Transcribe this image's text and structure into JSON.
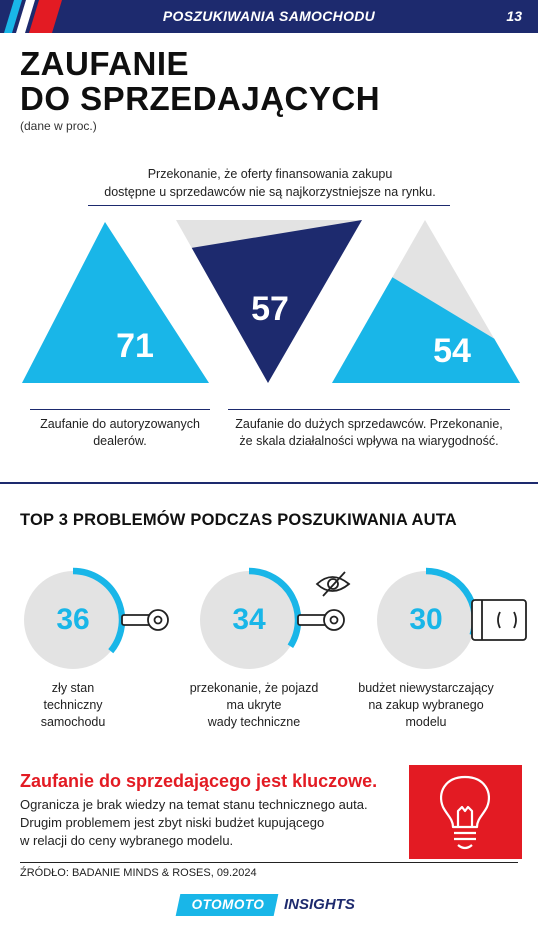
{
  "header": {
    "title": "POSZUKIWANIA SAMOCHODU",
    "page_number": "13"
  },
  "title_line1": "ZAUFANIE",
  "title_line2": "DO SPRZEDAJĄCYCH",
  "subnote": "(dane w proc.)",
  "colors": {
    "navy": "#1d2a6e",
    "cyan": "#19b6e8",
    "gray": "#e3e3e3",
    "red": "#e31b23"
  },
  "chart_data": [
    {
      "type": "triangle-proportion",
      "items": [
        {
          "value": 71,
          "label": "Zaufanie do autoryzowanych dealerów."
        },
        {
          "value": 57,
          "label": "Przekonanie, że oferty finansowania zakupu dostępne u sprzedawców nie są najkorzystniejsze na rynku."
        },
        {
          "value": 54,
          "label": "Zaufanie do dużych sprzedawców. Przekonanie, że skala działalności wpływa na wiarygodność."
        }
      ]
    },
    {
      "type": "donut-progress",
      "title": "TOP 3 PROBLEMÓW PODCZAS POSZUKIWANIA AUTA",
      "items": [
        {
          "value": 36,
          "label_lines": [
            "zły stan",
            "techniczny",
            "samochodu"
          ]
        },
        {
          "value": 34,
          "label_lines": [
            "przekonanie, że pojazd",
            "ma ukryte",
            "wady techniczne"
          ]
        },
        {
          "value": 30,
          "label_lines": [
            "budżet niewystarczający",
            "na zakup wybranego",
            "modelu"
          ]
        }
      ]
    }
  ],
  "top_caption_lines": [
    "Przekonanie, że oferty finansowania zakupu",
    "dostępne u sprzedawców nie są najkorzystniejsze na rynku."
  ],
  "left_caption_lines": [
    "Zaufanie do autoryzowanych",
    "dealerów."
  ],
  "right_caption_lines": [
    "Zaufanie do dużych sprzedawców. Przekonanie,",
    "że skala działalności wpływa na wiarygodność."
  ],
  "bottom": {
    "title": "Zaufanie do sprzedającego jest kluczowe.",
    "lines": [
      "Ogranicza je brak wiedzy na temat stanu technicznego auta.",
      "Drugim problemem jest zbyt niski budżet kupującego",
      "w relacji do ceny wybranego modelu."
    ]
  },
  "source": "ŹRÓDŁO: BADANIE MINDS & ROSES, 09.2024",
  "logo": {
    "brand": "OTOMOTO",
    "suffix": "INSIGHTS"
  },
  "icons": [
    "wrench-icon",
    "eye-crossed-icon",
    "wallet-icon",
    "lightbulb-icon"
  ]
}
